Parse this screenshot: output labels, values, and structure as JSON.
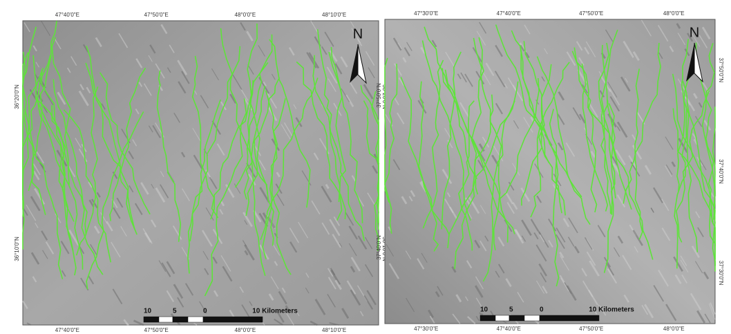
{
  "panels": [
    {
      "top_labels": [
        "47°40'0\"E",
        "47°50'0\"E",
        "48°0'0\"E",
        "48°10'0\"E"
      ],
      "bottom_labels": [
        "47°40'0\"E",
        "47°50'0\"E",
        "48°0'0\"E",
        "48°10'0\"E"
      ],
      "left_labels": [
        "36°20'0\"N",
        "36°10'0\"N"
      ],
      "right_labels": [
        "36°20'0\"N",
        "36°10'0\"N"
      ],
      "north": "N",
      "scale_labels": [
        "10",
        "5",
        "0",
        "10 Kilometers"
      ]
    },
    {
      "top_labels": [
        "47°30'0\"E",
        "47°40'0\"E",
        "47°50'0\"E",
        "48°0'0\"E"
      ],
      "bottom_labels": [
        "47°30'0\"E",
        "47°40'0\"E",
        "47°50'0\"E",
        "48°0'0\"E"
      ],
      "left_labels": [
        "37°50'0\"N",
        "37°40'0\"N"
      ],
      "right_labels": [
        "37°50'0\"N",
        "37°40'0\"N",
        "37°30'0\"N"
      ],
      "north": "N",
      "scale_labels": [
        "10",
        "5",
        "0",
        "10 Kilometers"
      ]
    }
  ]
}
